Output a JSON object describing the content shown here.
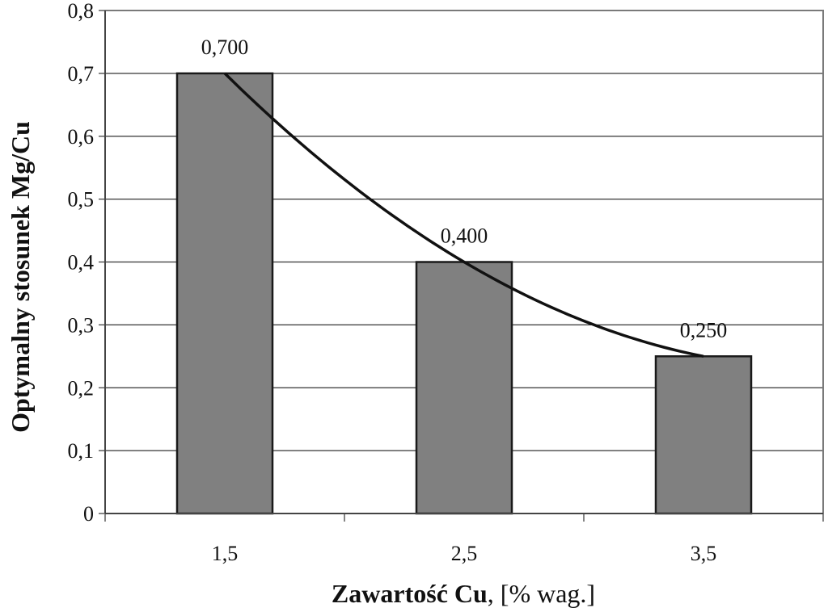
{
  "chart_data": {
    "type": "bar",
    "categories": [
      "1,5",
      "2,5",
      "3,5"
    ],
    "values": [
      0.7,
      0.4,
      0.25
    ],
    "value_labels": [
      "0,700",
      "0,400",
      "0,250"
    ],
    "ylim": [
      0,
      0.8
    ],
    "yticks": [
      0,
      0.1,
      0.2,
      0.3,
      0.4,
      0.5,
      0.6,
      0.7,
      0.8
    ],
    "ytick_labels": [
      "0",
      "0,1",
      "0,2",
      "0,3",
      "0,4",
      "0,5",
      "0,6",
      "0,7",
      "0,8"
    ],
    "ylabel": "Optymalny stosunek Mg/Cu",
    "xlabel_bold": "Zawartość Cu",
    "xlabel_rest": ", [% wag.]",
    "grid": true,
    "trendline": "smooth curve through bar tops",
    "colors": {
      "bar": "#808080",
      "bar_stroke": "#1a1a1a",
      "grid": "#333333",
      "curve": "#111111"
    }
  }
}
